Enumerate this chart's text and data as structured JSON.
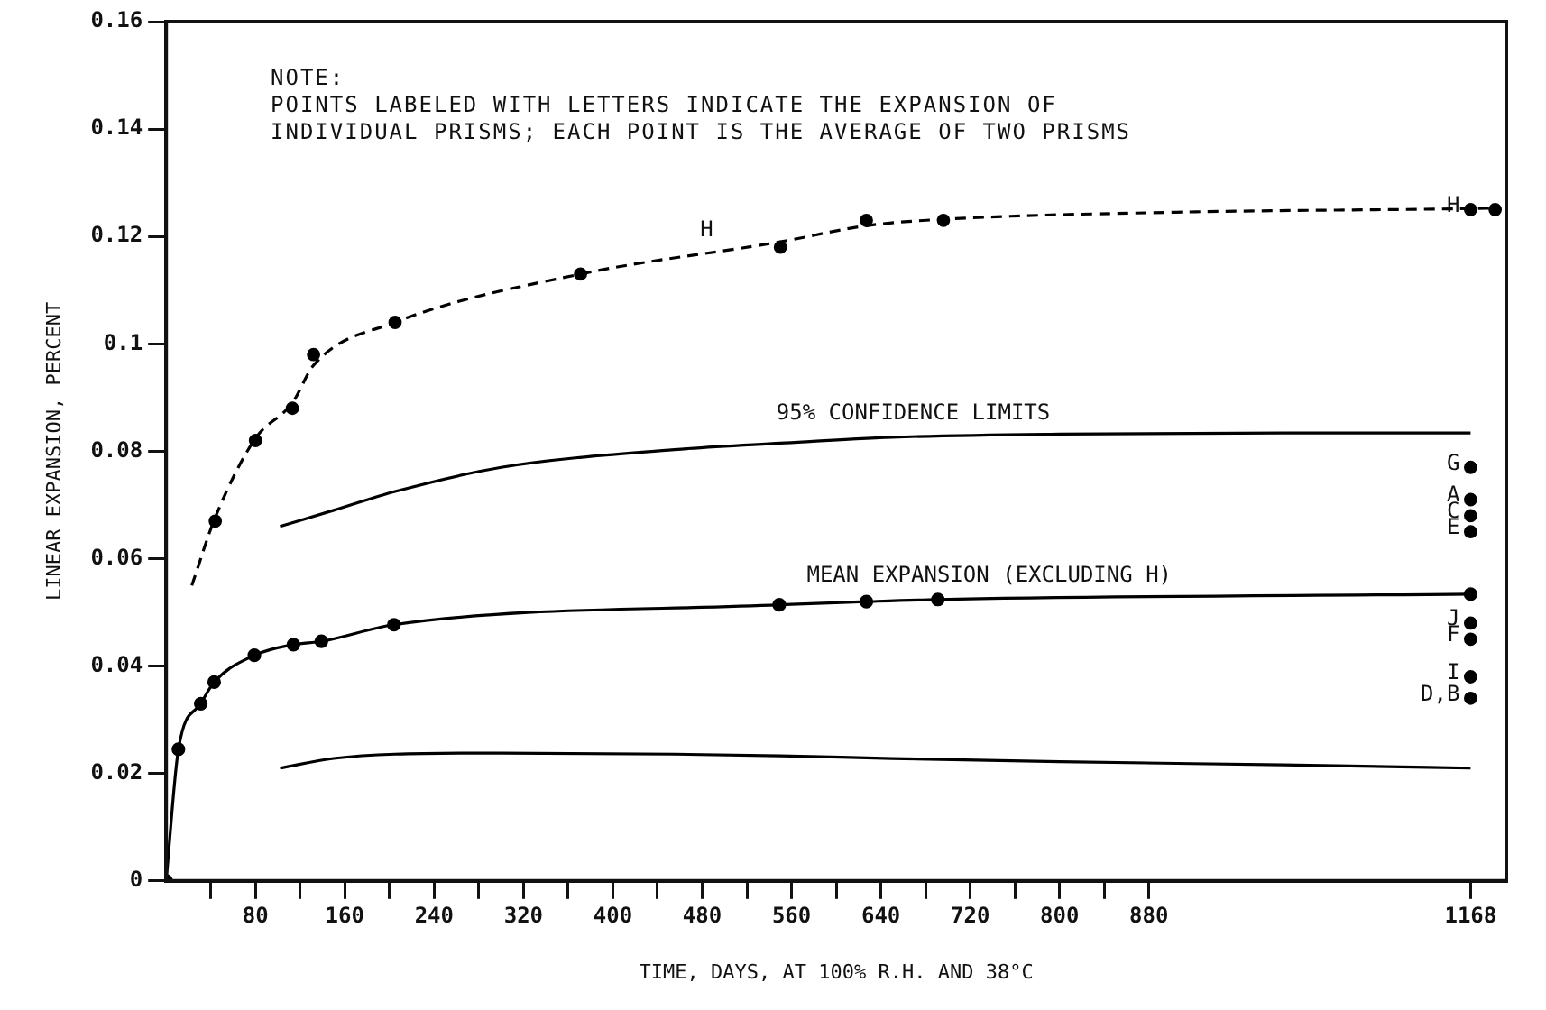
{
  "chart_data": {
    "type": "line",
    "xlabel": "TIME, DAYS, AT 100% R.H. AND 38°C",
    "ylabel": "LINEAR EXPANSION, PERCENT",
    "xlim": [
      0,
      1200
    ],
    "xticks": [
      {
        "value": 40,
        "label": null
      },
      80,
      {
        "value": 120,
        "label": null
      },
      160,
      {
        "value": 200,
        "label": null
      },
      240,
      {
        "value": 280,
        "label": null
      },
      320,
      {
        "value": 360,
        "label": null
      },
      400,
      {
        "value": 440,
        "label": null
      },
      480,
      {
        "value": 520,
        "label": null
      },
      560,
      {
        "value": 600,
        "label": null
      },
      640,
      {
        "value": 680,
        "label": null
      },
      720,
      {
        "value": 760,
        "label": null
      },
      800,
      {
        "value": 840,
        "label": null
      },
      880,
      1168
    ],
    "ylim": [
      0,
      0.16
    ],
    "yticks": [
      0,
      0.02,
      0.04,
      0.06,
      0.08,
      0.1,
      0.12,
      0.14,
      0.16
    ],
    "grid": false,
    "legend": false,
    "series": [
      {
        "type": "line",
        "color": "#000000",
        "line_style": "dashed",
        "marker": "none",
        "x": [
          23,
          44,
          80,
          113,
          132,
          205,
          371,
          550,
          627,
          696,
          900,
          1168,
          1190
        ],
        "values": [
          0.055,
          0.0677,
          0.0824,
          0.089,
          0.096,
          0.104,
          0.113,
          0.119,
          0.122,
          0.1232,
          0.1245,
          0.1252,
          0.1253
        ]
      },
      {
        "type": "scatter",
        "color": "#000000",
        "marker": "circle",
        "x": [
          44,
          80,
          113,
          132,
          205,
          371,
          550,
          627,
          696,
          1190
        ],
        "values": [
          0.067,
          0.082,
          0.088,
          0.098,
          0.104,
          0.113,
          0.118,
          0.123,
          0.123,
          0.125
        ]
      },
      {
        "type": "line",
        "color": "#000000",
        "line_style": "solid",
        "marker": "circle",
        "x": [
          0,
          11,
          31,
          43,
          79,
          114,
          139,
          204,
          549,
          627,
          691,
          1168
        ],
        "values": [
          0,
          0.0245,
          0.033,
          0.037,
          0.042,
          0.044,
          0.0446,
          0.0477,
          0.0514,
          0.052,
          0.0524,
          0.0534
        ]
      },
      {
        "type": "line",
        "color": "#000000",
        "line_style": "solid",
        "marker": "none",
        "x": [
          102,
          150,
          205,
          300,
          455,
          550,
          650,
          800,
          1000,
          1168
        ],
        "values": [
          0.066,
          0.069,
          0.0725,
          0.077,
          0.0803,
          0.0815,
          0.0826,
          0.0832,
          0.0834,
          0.0834
        ]
      },
      {
        "type": "line",
        "color": "#000000",
        "line_style": "solid",
        "marker": "none",
        "x": [
          102,
          150,
          205,
          300,
          455,
          550,
          650,
          800,
          1000,
          1168
        ],
        "values": [
          0.021,
          0.0228,
          0.0236,
          0.0238,
          0.0236,
          0.0233,
          0.0228,
          0.0222,
          0.0216,
          0.021
        ]
      },
      {
        "type": "scatter",
        "color": "#000000",
        "marker": "circle",
        "x": [
          1168,
          1168,
          1168,
          1168,
          1168,
          1168,
          1168,
          1168,
          1168
        ],
        "values": [
          0.125,
          0.077,
          0.071,
          0.068,
          0.065,
          0.048,
          0.045,
          0.038,
          0.034
        ]
      }
    ],
    "annotations": [
      "NOTE:\nPOINTS LABELED WITH LETTERS INDICATE THE EXPANSION OF\nINDIVIDUAL PRISMS; EACH POINT IS THE AVERAGE OF TWO PRISMS",
      {
        "text": "H",
        "x": 484,
        "y": 0.117
      },
      {
        "text": "95% CONFIDENCE LIMITS",
        "x": 669,
        "y": 0.083
      },
      {
        "text": "MEAN EXPANSION (EXCLUDING H)",
        "x": 737,
        "y": 0.0527
      },
      {
        "text": "H",
        "x": 1168,
        "y": 0.125
      },
      {
        "text": "G",
        "x": 1168,
        "y": 0.077
      },
      {
        "text": "A",
        "x": 1168,
        "y": 0.071
      },
      {
        "text": "C",
        "x": 1168,
        "y": 0.068
      },
      {
        "text": "E",
        "x": 1168,
        "y": 0.065
      },
      {
        "text": "J",
        "x": 1168,
        "y": 0.048
      },
      {
        "text": "F",
        "x": 1168,
        "y": 0.045
      },
      {
        "text": "I",
        "x": 1168,
        "y": 0.038
      },
      {
        "text": "D,B",
        "x": 1168,
        "y": 0.034
      }
    ]
  }
}
